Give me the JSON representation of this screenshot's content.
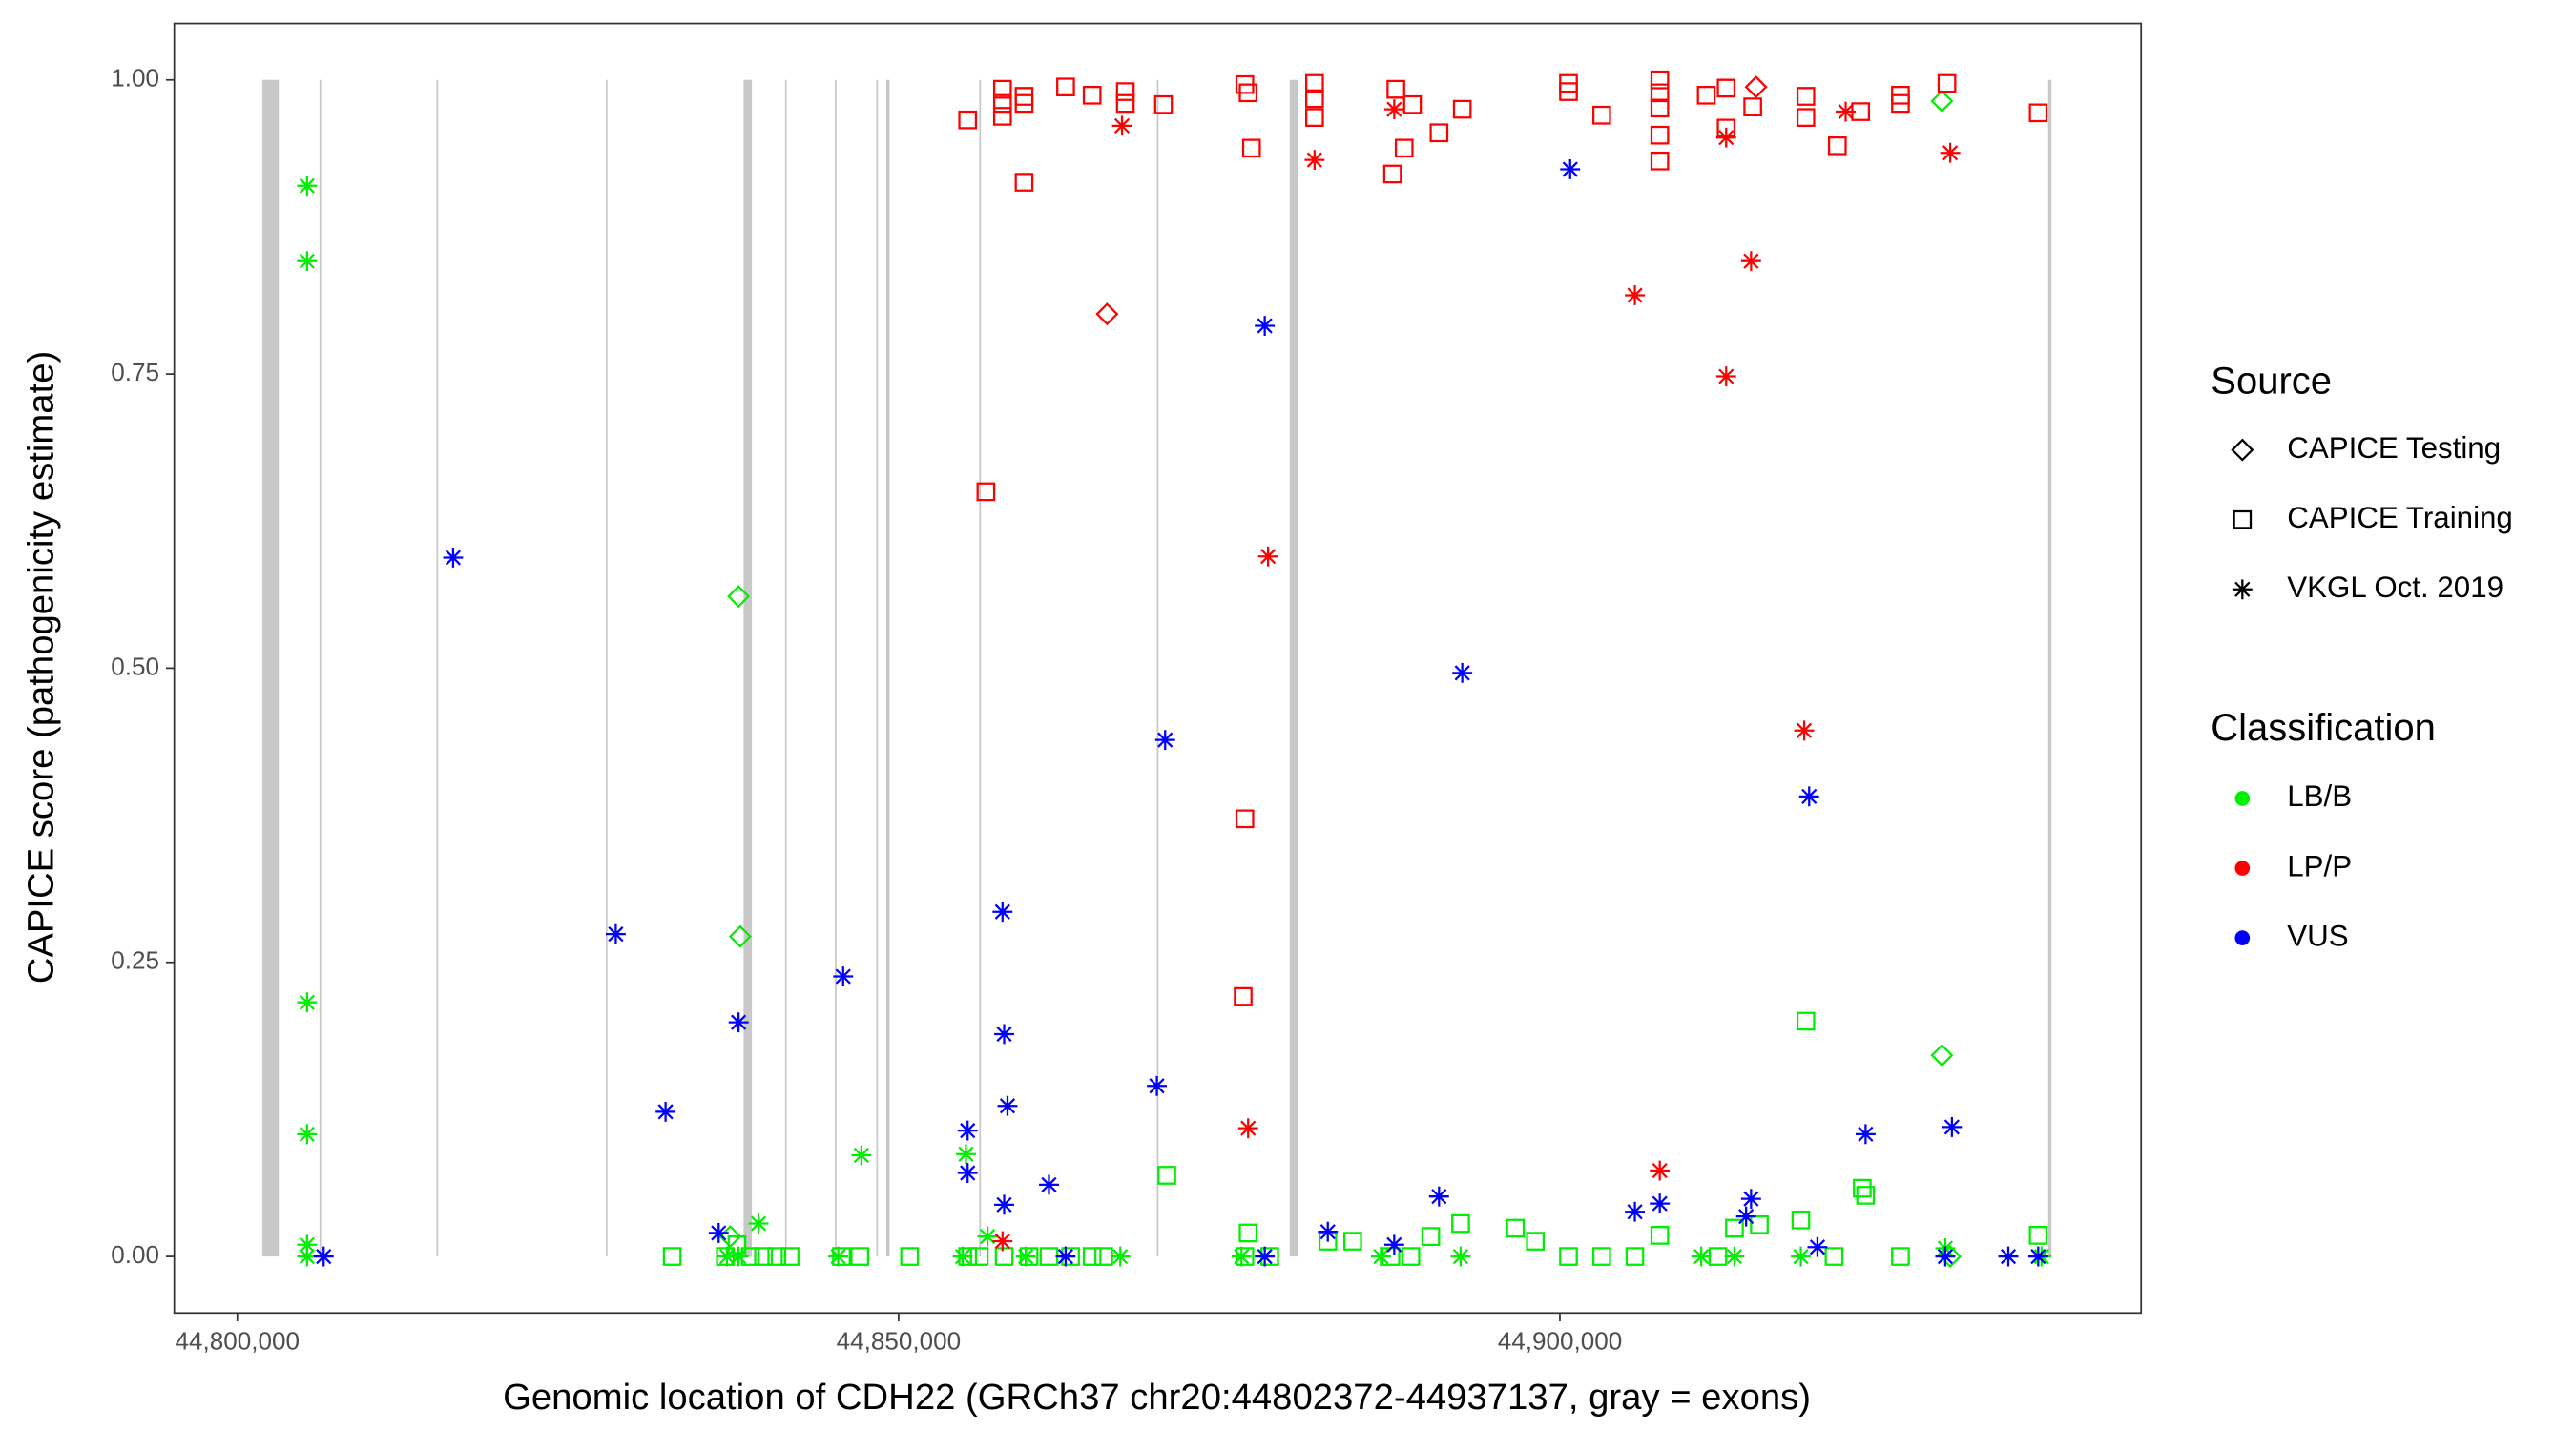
{
  "chart_data": {
    "type": "scatter",
    "x_label": "Genomic location of CDH22 (GRCh37 chr20:44802372-44937137, gray = exons)",
    "y_label": "CAPICE score (pathogenicity estimate)",
    "xlim": [
      44795231,
      44943950
    ],
    "ylim": [
      -0.048,
      1.048
    ],
    "xticks": [
      {
        "value": 44800000,
        "label": "44,800,000"
      },
      {
        "value": 44850000,
        "label": "44,850,000"
      },
      {
        "value": 44900000,
        "label": "44,900,000"
      }
    ],
    "yticks": [
      {
        "value": 0,
        "label": "0.00"
      },
      {
        "value": 0.25,
        "label": "0.25"
      },
      {
        "value": 0.5,
        "label": "0.50"
      },
      {
        "value": 0.75,
        "label": "0.75"
      },
      {
        "value": 1,
        "label": "1.00"
      }
    ],
    "exon_color": "#c8c8c8",
    "exons": [
      [
        44801883,
        44803138
      ],
      [
        44806212,
        44806338
      ],
      [
        44815060,
        44815185
      ],
      [
        44827861,
        44827986
      ],
      [
        44838278,
        44838905
      ],
      [
        44841415,
        44841540
      ],
      [
        44845180,
        44845305
      ],
      [
        44848318,
        44848443
      ],
      [
        44849070,
        44849321
      ],
      [
        44856099,
        44856224
      ],
      [
        44869528,
        44869653
      ],
      [
        44879567,
        44880195
      ],
      [
        44936920,
        44937171
      ]
    ],
    "legend": {
      "source_title": "Source",
      "source_items": [
        {
          "name": "CAPICE Testing",
          "shape": "diamond"
        },
        {
          "name": "CAPICE Training",
          "shape": "square"
        },
        {
          "name": "VKGL Oct. 2019",
          "shape": "asterisk"
        }
      ],
      "classification_title": "Classification",
      "classification_items": [
        {
          "name": "LB/B",
          "color": "#00ee00"
        },
        {
          "name": "LP/P",
          "color": "#ff0000"
        },
        {
          "name": "VUS",
          "color": "#0000ff"
        }
      ]
    },
    "series": [
      {
        "shape": "square",
        "color": "#00ee00",
        "x": [
          44832881,
          44836897,
          44837776,
          44838780,
          44839784,
          44840788,
          44841792,
          44845682,
          44847063,
          44850828,
          44855220,
          44856099,
          44857981,
          44859864,
          44861370,
          44863001,
          44864633,
          44865511,
          44870280,
          44876179,
          44876430,
          44878061,
          44882454,
          44884336,
          44887223,
          44888729,
          44890235,
          44892494,
          44896635,
          44898141,
          44900651,
          44903161,
          44905671,
          44907554,
          44911946,
          44913201,
          44915084,
          44918221,
          44918598,
          44920731,
          44922865,
          44923116,
          44925751,
          44936168
        ],
        "y": [
          0,
          0,
          0.01,
          0,
          0,
          0,
          0,
          0,
          0,
          0,
          0,
          0,
          0,
          0,
          0,
          0,
          0,
          0,
          0.069,
          0,
          0.02,
          0,
          0.013,
          0.013,
          0,
          0,
          0.017,
          0.028,
          0.024,
          0.013,
          0,
          0,
          0,
          0.018,
          0,
          0.024,
          0.027,
          0.031,
          0.2,
          0,
          0.058,
          0.052,
          0,
          0.018
        ]
      },
      {
        "shape": "asterisk",
        "color": "#00ee00",
        "x": [
          44805271,
          44805271,
          44805271,
          44805271,
          44805271,
          44805271,
          44839407,
          44847188,
          44855095,
          44856726,
          44910691,
          44918221,
          44929140,
          44837023,
          44837901,
          44845431,
          44854844,
          44859613,
          44866766,
          44875928,
          44886470,
          44892494,
          44913201,
          44936419
        ],
        "y": [
          0.91,
          0.846,
          0.216,
          0.104,
          0.01,
          0,
          0.028,
          0.086,
          0.087,
          0.017,
          0,
          0,
          0.007,
          0,
          0,
          0,
          0,
          0,
          0,
          0,
          0,
          0,
          0,
          0
        ]
      },
      {
        "shape": "diamond",
        "color": "#00ee00",
        "x": [
          44837901,
          44838027,
          44928889,
          44928889,
          44837274,
          44929516
        ],
        "y": [
          0.561,
          0.272,
          0.171,
          0.982,
          0.017,
          0
        ]
      },
      {
        "shape": "square",
        "color": "#ff0000",
        "x": [
          44855220,
          44856601,
          44857856,
          44857856,
          44857856,
          44859487,
          44859487,
          44859487,
          44862625,
          44864633,
          44867143,
          44867143,
          44870029,
          44876179,
          44876430,
          44876681,
          44876179,
          44876053,
          44881450,
          44881450,
          44881450,
          44887599,
          44888227,
          44888854,
          44887348,
          44890862,
          44892619,
          44900651,
          44900651,
          44903161,
          44907554,
          44907554,
          44907554,
          44907554,
          44907554,
          44911068,
          44912574,
          44912574,
          44914582,
          44918598,
          44918598,
          44920982,
          44922739,
          44925751,
          44925751,
          44929265,
          44936168
        ],
        "y": [
          0.966,
          0.65,
          0.992,
          0.98,
          0.969,
          0.913,
          0.986,
          0.98,
          0.994,
          0.987,
          0.99,
          0.98,
          0.979,
          0.996,
          0.989,
          0.942,
          0.372,
          0.221,
          0.997,
          0.984,
          0.968,
          0.992,
          0.942,
          0.979,
          0.92,
          0.955,
          0.975,
          0.997,
          0.99,
          0.97,
          1.0,
          0.989,
          0.976,
          0.953,
          0.931,
          0.987,
          0.993,
          0.959,
          0.977,
          0.986,
          0.968,
          0.944,
          0.973,
          0.987,
          0.98,
          0.997,
          0.972
        ]
      },
      {
        "shape": "asterisk",
        "color": "#ff0000",
        "x": [
          44866892,
          44877936,
          44876430,
          44881450,
          44887474,
          44905671,
          44912574,
          44912574,
          44914456,
          44907554,
          44918472,
          44921610,
          44929516,
          44857856
        ],
        "y": [
          0.961,
          0.595,
          0.109,
          0.932,
          0.975,
          0.817,
          0.748,
          0.951,
          0.846,
          0.073,
          0.447,
          0.973,
          0.938,
          0.013
        ]
      },
      {
        "shape": "diamond",
        "color": "#ff0000",
        "x": [
          44865762,
          44914833
        ],
        "y": [
          0.801,
          0.994
        ]
      },
      {
        "shape": "asterisk",
        "color": "#0000ff",
        "x": [
          44806526,
          44816315,
          44828614,
          44832379,
          44836395,
          44837901,
          44845808,
          44855220,
          44855220,
          44857856,
          44857981,
          44858232,
          44857981,
          44861370,
          44862625,
          44870154,
          44869528,
          44877685,
          44877685,
          44882454,
          44887474,
          44890862,
          44892619,
          44900777,
          44905671,
          44907554,
          44914080,
          44914456,
          44918849,
          44919476,
          44923116,
          44929642,
          44929140,
          44933909,
          44936168
        ],
        "y": [
          0,
          0.594,
          0.274,
          0.123,
          0.02,
          0.199,
          0.238,
          0.107,
          0.071,
          0.293,
          0.189,
          0.128,
          0.044,
          0.061,
          0,
          0.439,
          0.145,
          0.791,
          0,
          0.021,
          0.01,
          0.051,
          0.496,
          0.924,
          0.038,
          0.045,
          0.034,
          0.049,
          0.391,
          0.008,
          0.104,
          0.11,
          0,
          0,
          0
        ]
      }
    ]
  }
}
